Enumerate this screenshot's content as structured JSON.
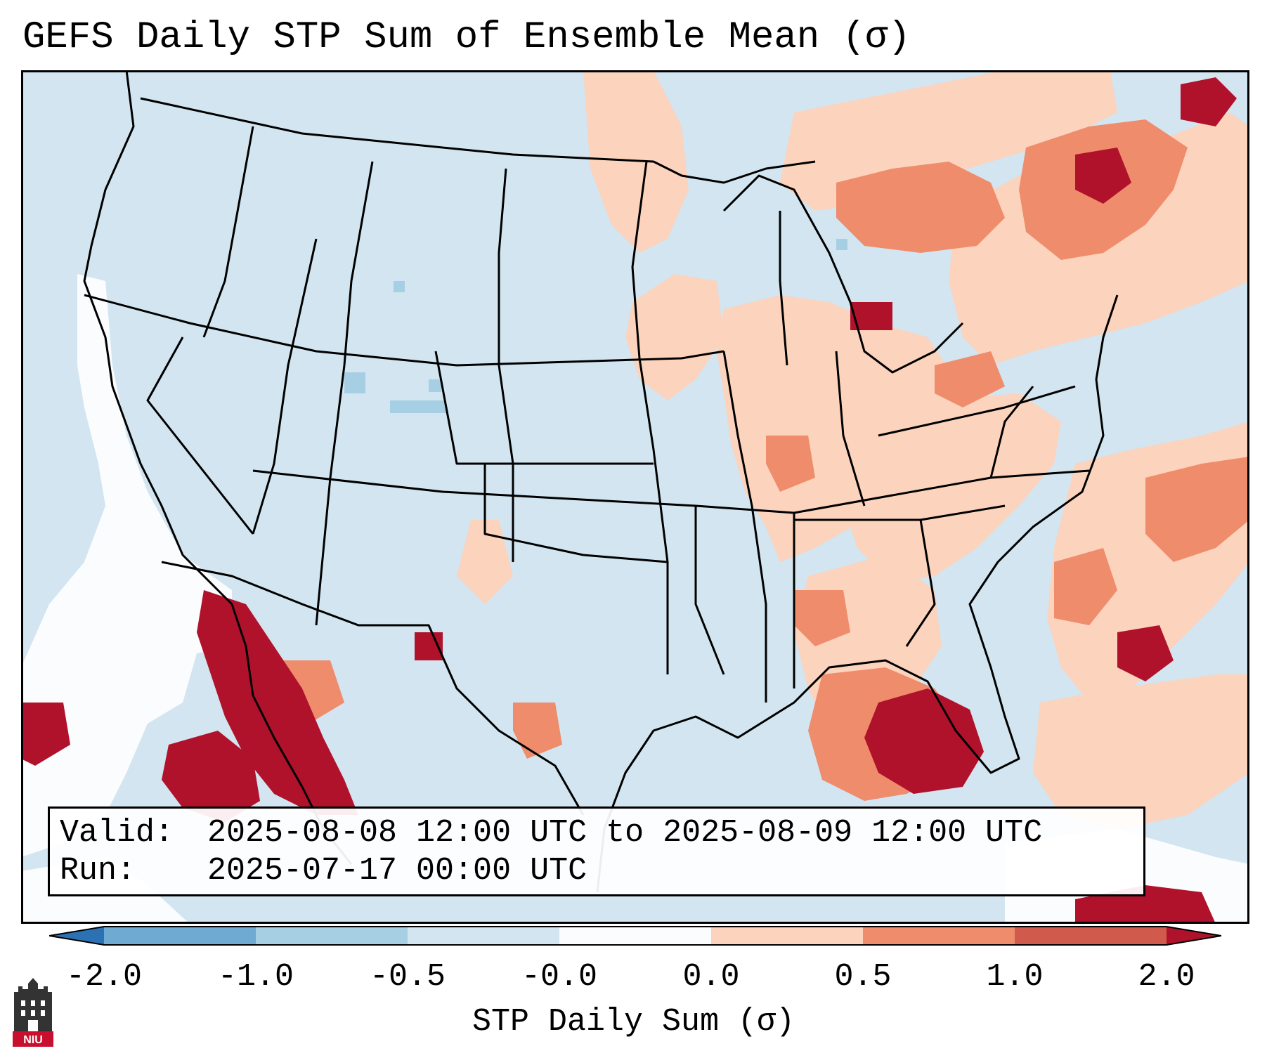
{
  "title": "GEFS Daily STP Sum of Ensemble Mean (σ)",
  "info": {
    "valid_label": "Valid:",
    "valid_value": "2025-08-08 12:00 UTC to 2025-08-09 12:00 UTC",
    "run_label": "Run:",
    "run_value": "2025-07-17 00:00 UTC"
  },
  "colorbar": {
    "label": "STP Daily Sum (σ)",
    "ticks": [
      "-2.0",
      "-1.0",
      "-0.5",
      "-0.0",
      "0.0",
      "0.5",
      "1.0",
      "2.0"
    ],
    "colors": [
      "#2b71b4",
      "#6eaad2",
      "#a7cfe4",
      "#d2e5f0",
      "#fbfcfe",
      "#fcd3bc",
      "#ef8c6c",
      "#d05a4c",
      "#b0122b"
    ]
  },
  "logo": {
    "text": "NIU"
  },
  "map": {
    "background_color": "#d2e5f0",
    "regions": [
      {
        "name": "Southeast / Gulf of Mexico",
        "level": "1.0 to 2.0"
      },
      {
        "name": "Northern Mexico / Gulf of California",
        "level": "1.0 to 2.0"
      },
      {
        "name": "Quebec / St. Lawrence",
        "level": "0.5 to 2.0"
      },
      {
        "name": "Western Atlantic",
        "level": "0.0 to 2.0"
      },
      {
        "name": "Southern Plains / Wyoming",
        "level": "-0.5 to -0.0"
      }
    ]
  }
}
